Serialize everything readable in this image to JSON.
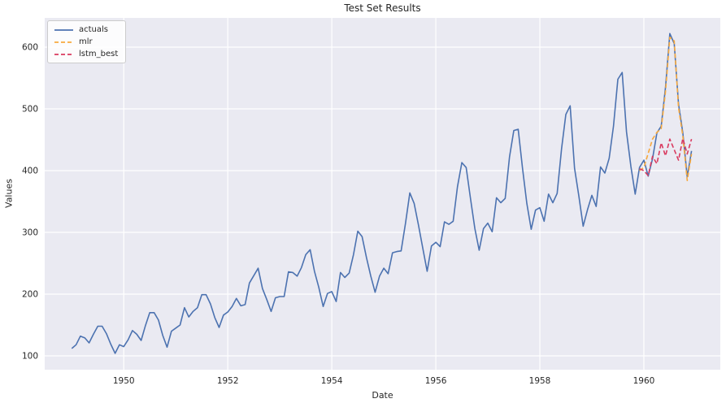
{
  "chart_data": {
    "type": "line",
    "title": "Test Set Results",
    "xlabel": "Date",
    "ylabel": "Values",
    "xlim": [
      1948.48,
      1961.47
    ],
    "ylim": [
      77.6,
      647.4
    ],
    "xticks": [
      1950,
      1952,
      1954,
      1956,
      1958,
      1960
    ],
    "xtick_labels": [
      "1950",
      "1952",
      "1954",
      "1956",
      "1958",
      "1960"
    ],
    "yticks": [
      100,
      200,
      300,
      400,
      500,
      600
    ],
    "ytick_labels": [
      "100",
      "200",
      "300",
      "400",
      "500",
      "600"
    ],
    "grid": true,
    "plot_background": "#eaeaf2",
    "grid_color": "#ffffff",
    "text_color": "#262626",
    "legend_position": "upper-left",
    "series": [
      {
        "name": "actuals",
        "color": "#4c72b0",
        "style": "solid",
        "start_year": 1949.0,
        "month_step": 0.0833333,
        "values": [
          112,
          118,
          132,
          129,
          121,
          135,
          148,
          148,
          136,
          119,
          104,
          118,
          115,
          126,
          141,
          135,
          125,
          149,
          170,
          170,
          158,
          133,
          114,
          140,
          145,
          150,
          178,
          163,
          172,
          178,
          199,
          199,
          184,
          162,
          146,
          166,
          171,
          180,
          193,
          181,
          183,
          218,
          230,
          242,
          209,
          191,
          172,
          194,
          196,
          196,
          236,
          235,
          229,
          243,
          264,
          272,
          237,
          211,
          180,
          201,
          204,
          188,
          235,
          227,
          234,
          264,
          302,
          293,
          259,
          229,
          203,
          229,
          242,
          233,
          267,
          269,
          270,
          315,
          364,
          347,
          312,
          274,
          237,
          278,
          284,
          277,
          317,
          313,
          318,
          374,
          413,
          405,
          355,
          306,
          271,
          306,
          315,
          301,
          356,
          348,
          355,
          422,
          465,
          467,
          404,
          347,
          305,
          336,
          340,
          318,
          362,
          348,
          363,
          435,
          491,
          505,
          404,
          359,
          310,
          337,
          360,
          342,
          406,
          396,
          420,
          472,
          548,
          559,
          463,
          407,
          362,
          405,
          417,
          391,
          419,
          461,
          472,
          535,
          622,
          606,
          508,
          461,
          390,
          432
        ]
      },
      {
        "name": "mlr",
        "color": "#f7a93e",
        "style": "dashed",
        "start_year": 1959.9167,
        "month_step": 0.0833333,
        "values": [
          400,
          405,
          428,
          451,
          462,
          468,
          528,
          616,
          610,
          502,
          456,
          384,
          427
        ]
      },
      {
        "name": "lstm_best",
        "color": "#d93a5f",
        "style": "dashed",
        "start_year": 1959.9167,
        "month_step": 0.0833333,
        "values": [
          403,
          400,
          392,
          423,
          411,
          445,
          424,
          451,
          434,
          417,
          452,
          427,
          451
        ]
      }
    ]
  }
}
